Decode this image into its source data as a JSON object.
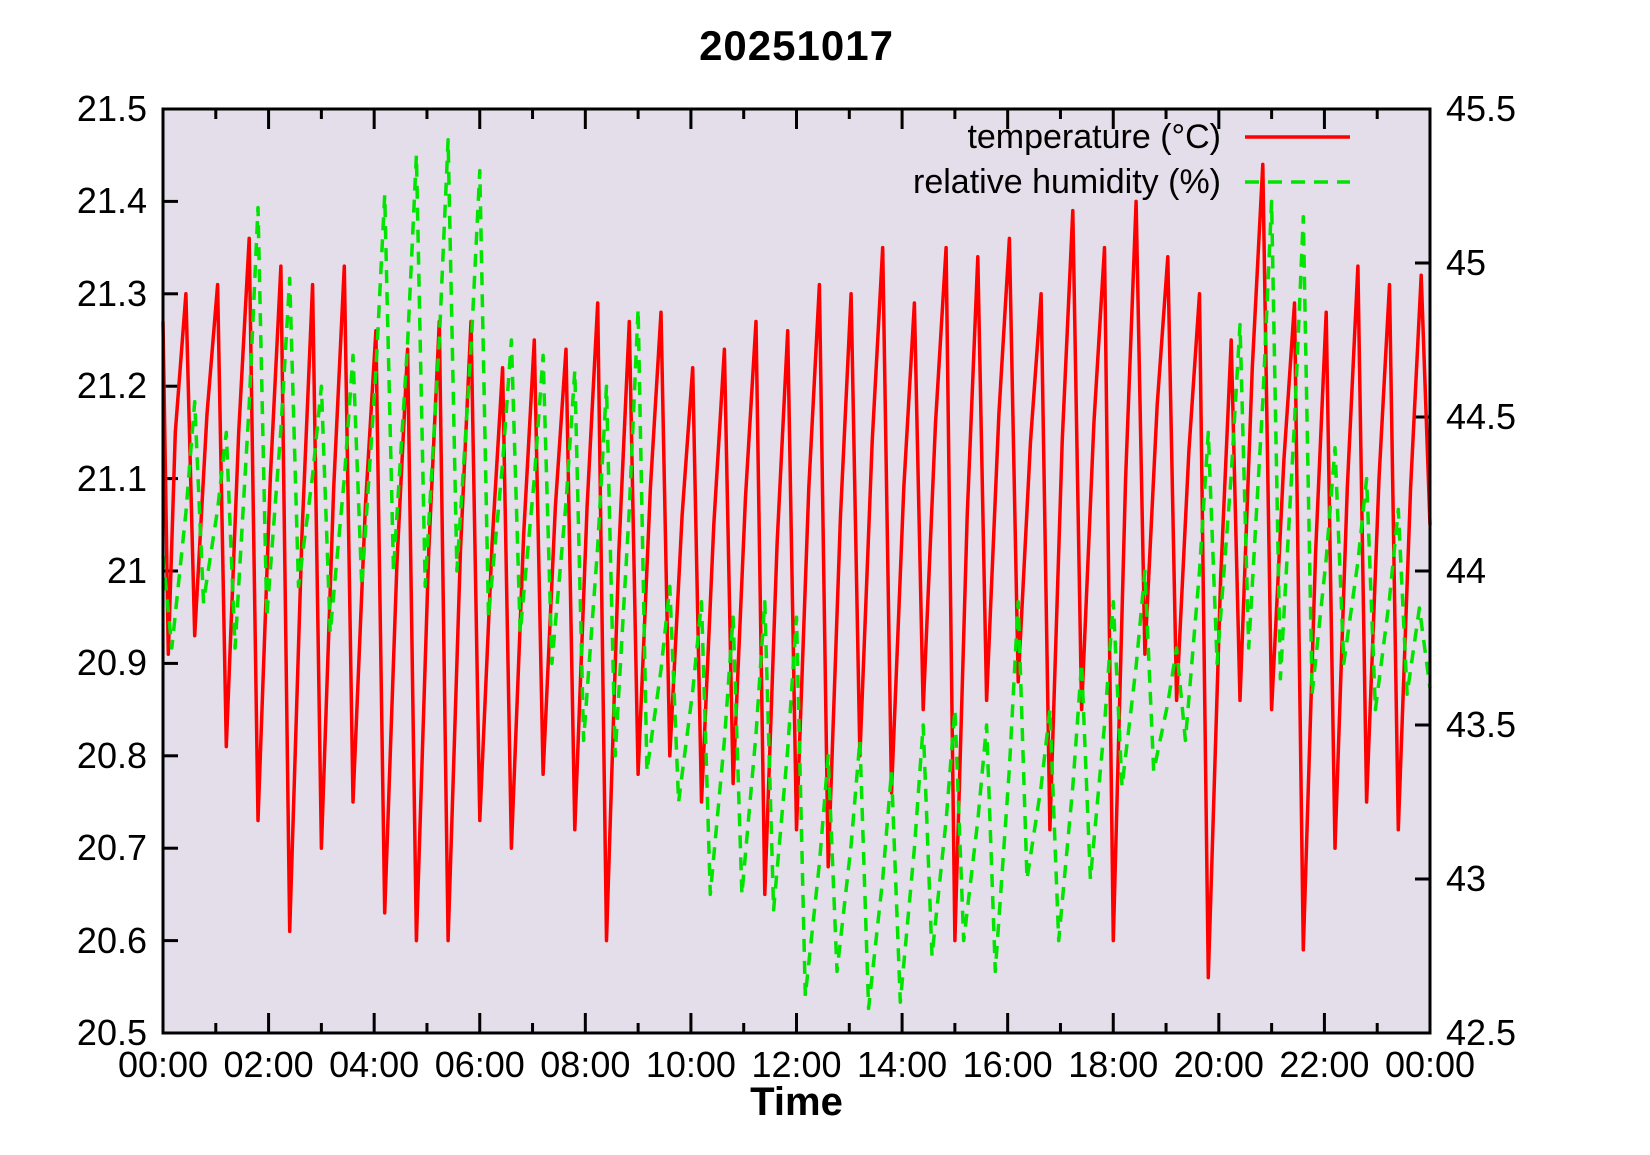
{
  "title": "20251017",
  "legend": {
    "temperature_label": "temperature (°C)",
    "humidity_label": "relative humidity (%)"
  },
  "colors": {
    "temperature": "#ff0000",
    "humidity": "#00e400",
    "plot_background": "#e3dee9",
    "axis": "#000000",
    "page_background": "#ffffff"
  },
  "chart_data": {
    "type": "line",
    "title": "20251017",
    "xlabel": "Time",
    "x_unit": "minutes_since_midnight",
    "x_range_minutes": [
      0,
      1440
    ],
    "x_axis": {
      "tick_hours": [
        0,
        2,
        4,
        6,
        8,
        10,
        12,
        14,
        16,
        18,
        20,
        22,
        24
      ],
      "tick_labels": [
        "00:00",
        "02:00",
        "04:00",
        "06:00",
        "08:00",
        "10:00",
        "12:00",
        "14:00",
        "16:00",
        "18:00",
        "20:00",
        "22:00",
        "00:00"
      ],
      "minor_tick_hours": [
        1,
        3,
        5,
        7,
        9,
        11,
        13,
        15,
        17,
        19,
        21,
        23
      ]
    },
    "y_left": {
      "ylim": [
        20.5,
        21.5
      ],
      "tick_values": [
        21.5,
        21.4,
        21.3,
        21.2,
        21.1,
        21.0,
        20.9,
        20.8,
        20.7,
        20.6,
        20.5
      ],
      "tick_labels": [
        "21.5",
        "21.4",
        "21.3",
        "21.2",
        "21.1",
        "21",
        "20.9",
        "20.8",
        "20.7",
        "20.6",
        "20.5"
      ]
    },
    "y_right": {
      "ylim": [
        42.5,
        45.5
      ],
      "tick_values": [
        45.5,
        45.0,
        44.5,
        44.0,
        43.5,
        43.0,
        42.5
      ],
      "tick_labels": [
        "45.5",
        "45",
        "44.5",
        "44",
        "43.5",
        "43",
        "42.5"
      ]
    },
    "grid": false,
    "legend_position": "top-right-inside",
    "series": [
      {
        "name": "temperature (°C)",
        "axis": "left",
        "color": "#ff0000",
        "line_style": "solid",
        "points": [
          [
            0,
            21.27
          ],
          [
            6,
            20.91
          ],
          [
            14,
            21.15
          ],
          [
            26,
            21.3
          ],
          [
            36,
            20.93
          ],
          [
            50,
            21.17
          ],
          [
            62,
            21.31
          ],
          [
            72,
            20.81
          ],
          [
            86,
            21.15
          ],
          [
            98,
            21.36
          ],
          [
            108,
            20.73
          ],
          [
            122,
            21.1
          ],
          [
            134,
            21.33
          ],
          [
            144,
            20.61
          ],
          [
            158,
            21.04
          ],
          [
            170,
            21.31
          ],
          [
            180,
            20.7
          ],
          [
            194,
            21.09
          ],
          [
            206,
            21.33
          ],
          [
            216,
            20.75
          ],
          [
            230,
            21.07
          ],
          [
            242,
            21.26
          ],
          [
            252,
            20.63
          ],
          [
            266,
            21.01
          ],
          [
            278,
            21.24
          ],
          [
            288,
            20.6
          ],
          [
            302,
            21.02
          ],
          [
            314,
            21.27
          ],
          [
            324,
            20.6
          ],
          [
            338,
            21.02
          ],
          [
            350,
            21.27
          ],
          [
            360,
            20.73
          ],
          [
            374,
            21.03
          ],
          [
            386,
            21.22
          ],
          [
            396,
            20.7
          ],
          [
            410,
            21.04
          ],
          [
            422,
            21.25
          ],
          [
            432,
            20.78
          ],
          [
            446,
            21.07
          ],
          [
            458,
            21.24
          ],
          [
            468,
            20.72
          ],
          [
            482,
            21.07
          ],
          [
            494,
            21.29
          ],
          [
            504,
            20.6
          ],
          [
            518,
            21.02
          ],
          [
            530,
            21.27
          ],
          [
            540,
            20.78
          ],
          [
            554,
            21.09
          ],
          [
            566,
            21.28
          ],
          [
            576,
            20.8
          ],
          [
            590,
            21.06
          ],
          [
            602,
            21.22
          ],
          [
            612,
            20.75
          ],
          [
            626,
            21.05
          ],
          [
            638,
            21.24
          ],
          [
            648,
            20.77
          ],
          [
            662,
            21.08
          ],
          [
            674,
            21.27
          ],
          [
            684,
            20.65
          ],
          [
            698,
            21.03
          ],
          [
            710,
            21.26
          ],
          [
            720,
            20.72
          ],
          [
            734,
            21.09
          ],
          [
            746,
            21.31
          ],
          [
            756,
            20.68
          ],
          [
            770,
            21.06
          ],
          [
            782,
            21.3
          ],
          [
            792,
            20.8
          ],
          [
            806,
            21.14
          ],
          [
            818,
            21.35
          ],
          [
            828,
            20.76
          ],
          [
            842,
            21.09
          ],
          [
            854,
            21.29
          ],
          [
            864,
            20.85
          ],
          [
            878,
            21.16
          ],
          [
            890,
            21.35
          ],
          [
            900,
            20.6
          ],
          [
            914,
            21.06
          ],
          [
            926,
            21.34
          ],
          [
            936,
            20.86
          ],
          [
            950,
            21.17
          ],
          [
            962,
            21.36
          ],
          [
            972,
            20.88
          ],
          [
            986,
            21.14
          ],
          [
            998,
            21.3
          ],
          [
            1008,
            20.72
          ],
          [
            1022,
            21.14
          ],
          [
            1034,
            21.39
          ],
          [
            1044,
            20.85
          ],
          [
            1058,
            21.16
          ],
          [
            1070,
            21.35
          ],
          [
            1080,
            20.6
          ],
          [
            1094,
            21.1
          ],
          [
            1106,
            21.4
          ],
          [
            1116,
            20.91
          ],
          [
            1130,
            21.18
          ],
          [
            1142,
            21.34
          ],
          [
            1152,
            20.86
          ],
          [
            1166,
            21.13
          ],
          [
            1178,
            21.3
          ],
          [
            1188,
            20.56
          ],
          [
            1202,
            20.99
          ],
          [
            1214,
            21.25
          ],
          [
            1224,
            20.86
          ],
          [
            1238,
            21.22
          ],
          [
            1250,
            21.44
          ],
          [
            1260,
            20.85
          ],
          [
            1274,
            21.12
          ],
          [
            1286,
            21.29
          ],
          [
            1296,
            20.59
          ],
          [
            1310,
            21.02
          ],
          [
            1322,
            21.28
          ],
          [
            1332,
            20.7
          ],
          [
            1346,
            21.09
          ],
          [
            1358,
            21.33
          ],
          [
            1368,
            20.75
          ],
          [
            1382,
            21.1
          ],
          [
            1394,
            21.31
          ],
          [
            1404,
            20.72
          ],
          [
            1418,
            21.09
          ],
          [
            1430,
            21.32
          ],
          [
            1440,
            21.05
          ]
        ]
      },
      {
        "name": "relative humidity (%)",
        "axis": "right",
        "color": "#00e400",
        "line_style": "dashed",
        "points": [
          [
            0,
            44.05
          ],
          [
            10,
            43.75
          ],
          [
            26,
            44.19
          ],
          [
            36,
            44.55
          ],
          [
            46,
            43.9
          ],
          [
            62,
            44.2
          ],
          [
            72,
            44.45
          ],
          [
            82,
            43.75
          ],
          [
            98,
            44.54
          ],
          [
            108,
            45.18
          ],
          [
            118,
            43.85
          ],
          [
            134,
            44.46
          ],
          [
            144,
            44.95
          ],
          [
            154,
            43.95
          ],
          [
            170,
            44.31
          ],
          [
            180,
            44.6
          ],
          [
            190,
            43.8
          ],
          [
            206,
            44.3
          ],
          [
            216,
            44.7
          ],
          [
            226,
            43.95
          ],
          [
            242,
            44.65
          ],
          [
            252,
            45.22
          ],
          [
            262,
            44.0
          ],
          [
            278,
            44.74
          ],
          [
            288,
            45.35
          ],
          [
            298,
            43.95
          ],
          [
            314,
            44.75
          ],
          [
            324,
            45.4
          ],
          [
            334,
            44.0
          ],
          [
            350,
            44.72
          ],
          [
            360,
            45.3
          ],
          [
            370,
            43.85
          ],
          [
            386,
            44.35
          ],
          [
            396,
            44.75
          ],
          [
            406,
            43.8
          ],
          [
            422,
            44.3
          ],
          [
            432,
            44.7
          ],
          [
            442,
            43.7
          ],
          [
            458,
            44.22
          ],
          [
            468,
            44.65
          ],
          [
            478,
            43.45
          ],
          [
            494,
            44.08
          ],
          [
            504,
            44.6
          ],
          [
            514,
            43.4
          ],
          [
            530,
            44.2
          ],
          [
            540,
            44.85
          ],
          [
            550,
            43.35
          ],
          [
            566,
            43.68
          ],
          [
            576,
            43.95
          ],
          [
            586,
            43.25
          ],
          [
            602,
            43.61
          ],
          [
            612,
            43.9
          ],
          [
            622,
            42.95
          ],
          [
            638,
            43.45
          ],
          [
            648,
            43.85
          ],
          [
            658,
            42.95
          ],
          [
            674,
            43.47
          ],
          [
            684,
            43.9
          ],
          [
            694,
            42.9
          ],
          [
            710,
            43.42
          ],
          [
            720,
            43.85
          ],
          [
            730,
            42.62
          ],
          [
            746,
            43.05
          ],
          [
            756,
            43.4
          ],
          [
            766,
            42.7
          ],
          [
            782,
            43.11
          ],
          [
            792,
            43.45
          ],
          [
            802,
            42.58
          ],
          [
            818,
            43.0
          ],
          [
            828,
            43.35
          ],
          [
            838,
            42.6
          ],
          [
            854,
            43.1
          ],
          [
            864,
            43.5
          ],
          [
            874,
            42.75
          ],
          [
            890,
            43.19
          ],
          [
            900,
            43.55
          ],
          [
            910,
            42.8
          ],
          [
            926,
            43.19
          ],
          [
            936,
            43.5
          ],
          [
            946,
            42.7
          ],
          [
            962,
            43.36
          ],
          [
            972,
            43.9
          ],
          [
            982,
            43.0
          ],
          [
            998,
            43.3
          ],
          [
            1008,
            43.55
          ],
          [
            1018,
            42.8
          ],
          [
            1034,
            43.3
          ],
          [
            1044,
            43.7
          ],
          [
            1054,
            43.0
          ],
          [
            1070,
            43.5
          ],
          [
            1080,
            43.9
          ],
          [
            1090,
            43.3
          ],
          [
            1106,
            43.69
          ],
          [
            1116,
            44.0
          ],
          [
            1126,
            43.35
          ],
          [
            1142,
            43.57
          ],
          [
            1152,
            43.75
          ],
          [
            1162,
            43.45
          ],
          [
            1178,
            44.0
          ],
          [
            1188,
            44.45
          ],
          [
            1198,
            43.7
          ],
          [
            1214,
            44.31
          ],
          [
            1224,
            44.8
          ],
          [
            1234,
            43.75
          ],
          [
            1250,
            44.55
          ],
          [
            1260,
            45.2
          ],
          [
            1270,
            43.65
          ],
          [
            1286,
            44.48
          ],
          [
            1296,
            45.15
          ],
          [
            1306,
            43.6
          ],
          [
            1322,
            44.04
          ],
          [
            1332,
            44.4
          ],
          [
            1342,
            43.7
          ],
          [
            1358,
            44.03
          ],
          [
            1368,
            44.3
          ],
          [
            1378,
            43.55
          ],
          [
            1394,
            43.91
          ],
          [
            1404,
            44.2
          ],
          [
            1414,
            43.6
          ],
          [
            1428,
            43.88
          ],
          [
            1440,
            43.62
          ]
        ]
      }
    ]
  }
}
